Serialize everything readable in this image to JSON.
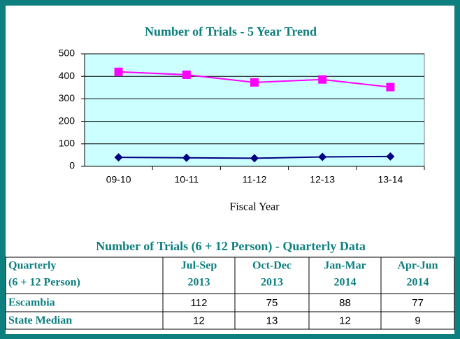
{
  "chart_data": {
    "type": "line",
    "title": "Number of Trials - 5 Year Trend",
    "xlabel": "Fiscal Year",
    "categories": [
      "09-10",
      "10-11",
      "11-12",
      "12-13",
      "13-14"
    ],
    "series": [
      {
        "color": "#ff00ff",
        "marker": "square",
        "values": [
          420,
          407,
          373,
          386,
          352
        ]
      },
      {
        "color": "#000080",
        "marker": "diamond",
        "values": [
          40,
          38,
          36,
          42,
          44
        ]
      }
    ],
    "ylim": [
      0,
      500
    ],
    "yticks": [
      0,
      100,
      200,
      300,
      400,
      500
    ],
    "grid": true,
    "plot_background": "#ccffff"
  },
  "table": {
    "title": "Number of Trials (6 + 12 Person) - Quarterly Data",
    "header": [
      [
        "Quarterly",
        "(6 + 12 Person)"
      ],
      [
        "Jul-Sep",
        "2013"
      ],
      [
        "Oct-Dec",
        "2013"
      ],
      [
        "Jan-Mar",
        "2014"
      ],
      [
        "Apr-Jun",
        "2014"
      ]
    ],
    "rows": [
      [
        "Escambia",
        112,
        75,
        88,
        77
      ],
      [
        "State Median",
        12,
        13,
        12,
        9
      ]
    ]
  }
}
